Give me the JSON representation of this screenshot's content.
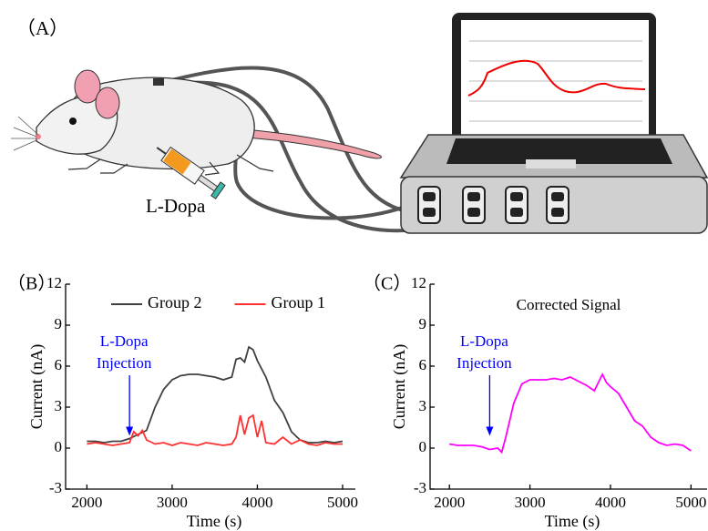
{
  "panel_labels": [
    "（A）",
    "（B）",
    "（C）"
  ],
  "illustration": {
    "drug_label": "L-Dopa"
  },
  "chart_data": [
    {
      "type": "line",
      "legend": "top",
      "xlabel": "Time (s)",
      "ylabel": "Current (nA)",
      "xlim": [
        1750,
        5150
      ],
      "xticks": [
        2000,
        3000,
        4000,
        5000
      ],
      "ylim": [
        -3,
        12
      ],
      "yticks": [
        -3,
        0,
        3,
        6,
        9,
        12
      ],
      "annotation": {
        "text": [
          "L-Dopa",
          "Injection"
        ],
        "x": 2500,
        "color": "#0000ff"
      },
      "series": [
        {
          "name": "Group 2",
          "color": "#404040",
          "x": [
            2000,
            2100,
            2200,
            2300,
            2400,
            2500,
            2600,
            2700,
            2800,
            2900,
            3000,
            3100,
            3200,
            3300,
            3400,
            3500,
            3600,
            3700,
            3750,
            3800,
            3850,
            3900,
            3950,
            4000,
            4100,
            4200,
            4300,
            4400,
            4500,
            4600,
            4700,
            4800,
            4900,
            5000
          ],
          "values": [
            0.5,
            0.5,
            0.4,
            0.5,
            0.5,
            0.7,
            1.0,
            1.3,
            3.0,
            4.3,
            5.0,
            5.3,
            5.4,
            5.4,
            5.3,
            5.2,
            5.0,
            5.2,
            6.5,
            6.6,
            6.3,
            7.4,
            7.2,
            6.4,
            5.2,
            3.5,
            2.6,
            1.2,
            0.6,
            0.4,
            0.4,
            0.5,
            0.4,
            0.5
          ]
        },
        {
          "name": "Group 1",
          "color": "#ff3030",
          "x": [
            2000,
            2100,
            2200,
            2300,
            2400,
            2500,
            2550,
            2600,
            2650,
            2700,
            2800,
            2900,
            3000,
            3100,
            3200,
            3300,
            3400,
            3500,
            3600,
            3700,
            3750,
            3800,
            3850,
            3900,
            3950,
            4000,
            4050,
            4100,
            4200,
            4300,
            4400,
            4500,
            4600,
            4700,
            4800,
            4900,
            5000
          ],
          "values": [
            0.3,
            0.4,
            0.3,
            0.2,
            0.3,
            0.4,
            1.2,
            0.9,
            1.3,
            0.6,
            0.3,
            0.4,
            0.2,
            0.4,
            0.3,
            0.2,
            0.4,
            0.3,
            0.2,
            0.3,
            0.8,
            2.4,
            1.0,
            2.2,
            2.4,
            0.8,
            2.0,
            0.4,
            0.3,
            0.8,
            0.3,
            0.6,
            0.3,
            0.2,
            0.4,
            0.3,
            0.3
          ]
        }
      ]
    },
    {
      "type": "line",
      "title": "Corrected Signal",
      "xlabel": "Time (s)",
      "ylabel": "Current (nA)",
      "xlim": [
        1760,
        5200
      ],
      "xticks": [
        2000,
        3000,
        4000,
        5000
      ],
      "ylim": [
        -3,
        12
      ],
      "yticks": [
        -3,
        0,
        3,
        6,
        9,
        12
      ],
      "annotation": {
        "text": [
          "L-Dopa",
          "Injection"
        ],
        "x": 2500,
        "color": "#0000ff"
      },
      "series": [
        {
          "color": "#ff00ff",
          "x": [
            2000,
            2100,
            2200,
            2300,
            2400,
            2500,
            2600,
            2650,
            2700,
            2800,
            2900,
            3000,
            3100,
            3200,
            3300,
            3400,
            3500,
            3600,
            3700,
            3800,
            3850,
            3900,
            3950,
            4000,
            4100,
            4200,
            4300,
            4400,
            4500,
            4600,
            4700,
            4800,
            4900,
            5000
          ],
          "values": [
            0.3,
            0.2,
            0.2,
            0.2,
            0.1,
            -0.1,
            0,
            -0.3,
            0.8,
            3.3,
            4.7,
            5.0,
            5.0,
            5.0,
            5.1,
            5.0,
            5.2,
            4.9,
            4.6,
            4.2,
            4.8,
            5.4,
            4.8,
            4.5,
            4.0,
            3.0,
            2.0,
            1.6,
            0.8,
            0.4,
            0.2,
            0.3,
            0.2,
            -0.2
          ]
        }
      ]
    }
  ]
}
